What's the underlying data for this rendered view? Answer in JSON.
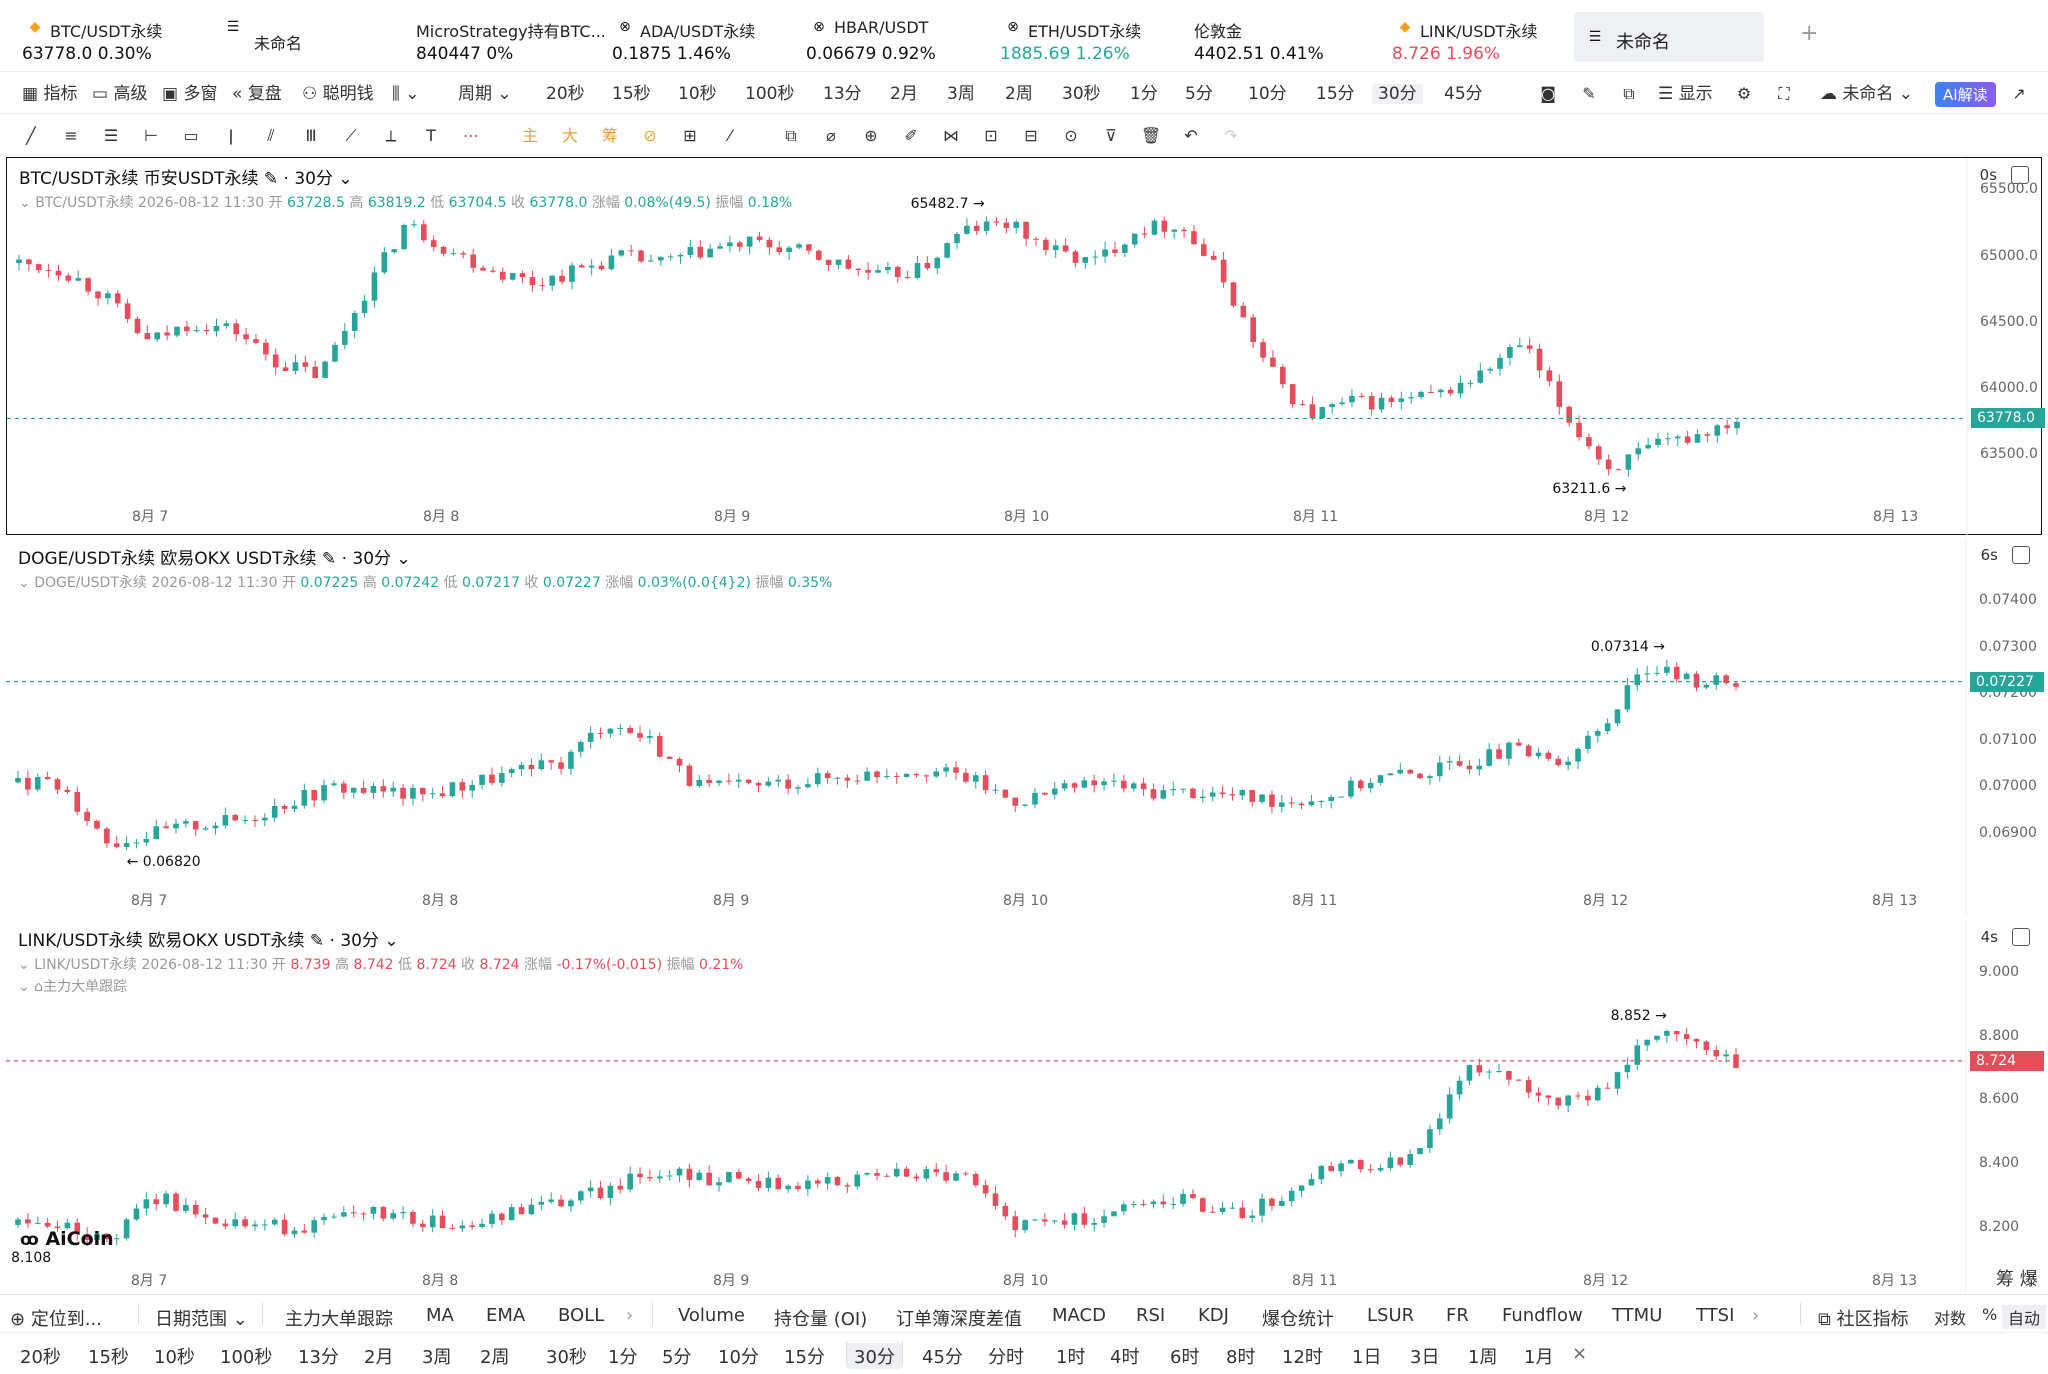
{
  "tabs": [
    {
      "icon": "bitcoin-icon",
      "name": "BTC/USDT永续",
      "price": "63778.0",
      "change": "0.30%",
      "color": "#111111"
    },
    {
      "icon": "folder-icon",
      "name": "未命名",
      "price": "",
      "change": "",
      "color": "#111111"
    },
    {
      "icon": "",
      "name": "MicroStrategy持有BTC...",
      "price": "840447",
      "change": "0%",
      "color": "#111111"
    },
    {
      "icon": "cross-circle-icon",
      "name": "ADA/USDT永续",
      "price": "0.1875",
      "change": "1.46%",
      "color": "#111111"
    },
    {
      "icon": "cross-circle-icon",
      "name": "HBAR/USDT",
      "price": "0.06679",
      "change": "0.92%",
      "color": "#111111"
    },
    {
      "icon": "cross-circle-icon",
      "name": "ETH/USDT永续",
      "price": "1885.69",
      "change": "1.26%",
      "color": "#26a69a"
    },
    {
      "icon": "",
      "name": "伦敦金",
      "price": "4402.51",
      "change": "0.41%",
      "color": "#111111"
    },
    {
      "icon": "link-icon",
      "name": "LINK/USDT永续",
      "price": "8.726",
      "change": "1.96%",
      "color": "#e74c5a"
    },
    {
      "icon": "folder-icon",
      "name": "未命名",
      "price": "",
      "change": "",
      "color": "#111111"
    }
  ],
  "toolbar1": {
    "left": [
      "指标",
      "高级",
      "多窗",
      "复盘",
      "聪明钱"
    ],
    "period": "周期",
    "intervals": [
      "20秒",
      "15秒",
      "10秒",
      "100秒",
      "13分",
      "2月",
      "3周",
      "2周",
      "30秒",
      "1分",
      "5分",
      "10分",
      "15分",
      "30分",
      "45分"
    ],
    "selected": "30分",
    "display": "显示",
    "layout_name": "未命名",
    "ai": "AI解读"
  },
  "toolbar2": {
    "icons": [
      "trend-line-icon",
      "parallel-lines-icon",
      "horizontal-lines-icon",
      "horizontal-ray-icon",
      "rectangle-icon",
      "vertical-line-icon",
      "channel-icon",
      "grid-icon",
      "fib-icon",
      "measure-icon",
      "text-icon",
      "more-dots-icon"
    ],
    "text_buttons": [
      "主",
      "大",
      "筹"
    ],
    "right_icons": [
      "copy-icon",
      "ruler-icon",
      "zoom-icon",
      "pen-icon",
      "magnet-icon",
      "lock-icon",
      "alert-icon",
      "eye-icon",
      "filter-icon",
      "trash-icon",
      "undo-icon",
      "redo-icon"
    ]
  },
  "panes": [
    {
      "title": "BTC/USDT永续 币安USDT永续",
      "interval": "30分",
      "timer": "0s",
      "info": {
        "sym": "BTC/USDT永续",
        "time": "2026-08-12 11:30",
        "open_l": "开",
        "open": "63728.5",
        "high_l": "高",
        "high": "63819.2",
        "low_l": "低",
        "low": "63704.5",
        "close_l": "收",
        "close": "63778.0",
        "chg_l": "涨幅",
        "chg": "0.08%(49.5)",
        "amp_l": "振幅",
        "amp": "0.18%"
      },
      "color": "#26a69a",
      "yticks": [
        "65500.0",
        "65000.0",
        "64500.0",
        "64000.0",
        "63500.0"
      ],
      "last": "63778.0",
      "hi_label": "65482.7 →",
      "lo_label": "63211.6 →",
      "extra": ""
    },
    {
      "title": "DOGE/USDT永续 欧易OKX USDT永续",
      "interval": "30分",
      "timer": "6s",
      "info": {
        "sym": "DOGE/USDT永续",
        "time": "2026-08-12 11:30",
        "open_l": "开",
        "open": "0.07225",
        "high_l": "高",
        "high": "0.07242",
        "low_l": "低",
        "low": "0.07217",
        "close_l": "收",
        "close": "0.07227",
        "chg_l": "涨幅",
        "chg": "0.03%(0.0{4}2)",
        "amp_l": "振幅",
        "amp": "0.35%"
      },
      "color": "#26a69a",
      "yticks": [
        "0.07400",
        "0.07300",
        "0.07200",
        "0.07100",
        "0.07000",
        "0.06900"
      ],
      "last": "0.07227",
      "hi_label": "0.07314 →",
      "lo_label": "← 0.06820",
      "extra": ""
    },
    {
      "title": "LINK/USDT永续 欧易OKX USDT永续",
      "interval": "30分",
      "timer": "4s",
      "info": {
        "sym": "LINK/USDT永续",
        "time": "2026-08-12 11:30",
        "open_l": "开",
        "open": "8.739",
        "high_l": "高",
        "high": "8.742",
        "low_l": "低",
        "low": "8.724",
        "close_l": "收",
        "close": "8.724",
        "chg_l": "涨幅",
        "chg": "-0.17%(-0.015)",
        "amp_l": "振幅",
        "amp": "0.21%"
      },
      "color": "#e74c5a",
      "yticks": [
        "9.000",
        "8.800",
        "8.600",
        "8.400",
        "8.200"
      ],
      "last": "8.724",
      "hi_label": "8.852 →",
      "lo_label": "8.108",
      "extra": "主力大单跟踪"
    }
  ],
  "xticks": [
    "8月 7",
    "8月 8",
    "8月 9",
    "8月 10",
    "8月 11",
    "8月 12",
    "8月 13"
  ],
  "chart_data": [
    {
      "type": "candlestick",
      "title": "BTC/USDT永续 币安USDT永续",
      "x": [
        "8月 7",
        "8月 8",
        "8月 9",
        "8月 10",
        "8月 11",
        "8月 12",
        "8月 13"
      ],
      "close_path": [
        64950,
        64900,
        64700,
        64350,
        64500,
        64450,
        64200,
        64100,
        64700,
        65250,
        65050,
        64900,
        64800,
        64900,
        65000,
        64950,
        65050,
        65100,
        65050,
        64950,
        64850,
        64900,
        65200,
        65250,
        65050,
        64950,
        65200,
        65250,
        64850,
        64200,
        63800,
        63900,
        63900,
        63950,
        64100,
        64350,
        63800,
        63400,
        63550,
        63650,
        63778
      ],
      "high": 65482.7,
      "low": 63211.6,
      "last": 63778.0,
      "ylim": [
        63200,
        65600
      ]
    },
    {
      "type": "candlestick",
      "title": "DOGE/USDT永续 欧易OKX USDT永续",
      "x": [
        "8月 7",
        "8月 8",
        "8月 9",
        "8月 10",
        "8月 11",
        "8月 12",
        "8月 13"
      ],
      "close_path": [
        0.0701,
        0.07,
        0.0688,
        0.069,
        0.0692,
        0.0693,
        0.0697,
        0.07,
        0.0699,
        0.0698,
        0.0701,
        0.0703,
        0.0705,
        0.0714,
        0.071,
        0.07,
        0.07,
        0.0701,
        0.0702,
        0.0703,
        0.0704,
        0.0702,
        0.0697,
        0.0699,
        0.0701,
        0.0699,
        0.0699,
        0.0698,
        0.0697,
        0.0698,
        0.0702,
        0.0703,
        0.0705,
        0.0708,
        0.0705,
        0.0712,
        0.0726,
        0.0723,
        0.07227
      ],
      "high": 0.07314,
      "low": 0.0682,
      "last": 0.07227,
      "ylim": [
        0.068,
        0.0745
      ]
    },
    {
      "type": "candlestick",
      "title": "LINK/USDT永续 欧易OKX USDT永续",
      "x": [
        "8月 7",
        "8月 8",
        "8月 9",
        "8月 10",
        "8月 11",
        "8月 12",
        "8月 13"
      ],
      "close_path": [
        8.21,
        8.2,
        8.15,
        8.3,
        8.25,
        8.21,
        8.2,
        8.22,
        8.25,
        8.22,
        8.2,
        8.25,
        8.28,
        8.32,
        8.38,
        8.36,
        8.35,
        8.33,
        8.35,
        8.36,
        8.37,
        8.36,
        8.2,
        8.22,
        8.24,
        8.3,
        8.28,
        8.24,
        8.3,
        8.4,
        8.38,
        8.45,
        8.7,
        8.68,
        8.6,
        8.62,
        8.8,
        8.79,
        8.724
      ],
      "high": 8.852,
      "low": 8.108,
      "last": 8.724,
      "ylim": [
        8.1,
        9.04
      ]
    }
  ],
  "indicators": {
    "locate": "定位到...",
    "date_range": "日期范围",
    "items": [
      "主力大单跟踪",
      "MA",
      "EMA",
      "BOLL",
      "Volume",
      "持仓量 (OI)",
      "订单簿深度差值",
      "MACD",
      "RSI",
      "KDJ",
      "爆仓统计",
      "LSUR",
      "FR",
      "Fundflow",
      "TTMU",
      "TTSI"
    ],
    "community": "社区指标",
    "log": "对数",
    "pct": "%",
    "auto": "自动"
  },
  "bottom_periods": [
    "20秒",
    "15秒",
    "10秒",
    "100秒",
    "13分",
    "2月",
    "3周",
    "2周",
    "30秒",
    "1分",
    "5分",
    "10分",
    "15分",
    "30分",
    "45分",
    "分时",
    "1时",
    "4时",
    "6时",
    "8时",
    "12时",
    "1日",
    "3日",
    "1周",
    "1月"
  ],
  "bottom_selected": "30分",
  "logo": "AiCoin",
  "chou": "筹 爆"
}
